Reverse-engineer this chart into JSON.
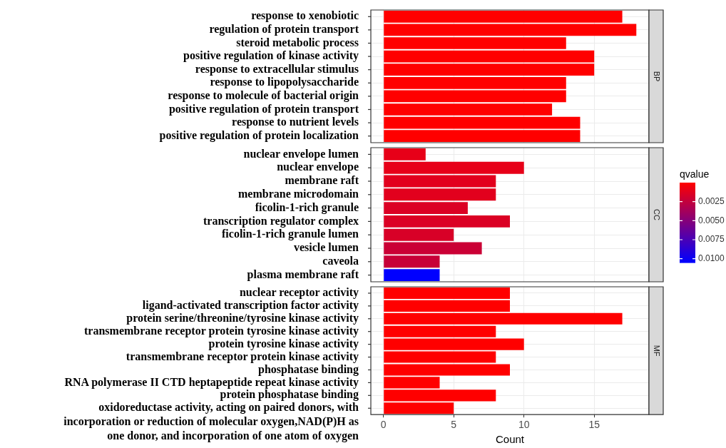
{
  "chart_data": [
    {
      "type": "bar",
      "orientation": "horizontal",
      "title": "BP",
      "categories": [
        "response to xenobiotic",
        "regulation of protein transport",
        "steroid metabolic process",
        "positive regulation of kinase activity",
        "response to extracellular stimulus",
        "response to lipopolysaccharide",
        "response to molecule of bacterial origin",
        "positive regulation of protein transport",
        "response to nutrient levels",
        "positive regulation of protein localization"
      ],
      "values": [
        17,
        18,
        13,
        15,
        15,
        13,
        13,
        12,
        14,
        14
      ],
      "colors": [
        "#ff0000",
        "#ff0000",
        "#ff0000",
        "#ff0000",
        "#ff0000",
        "#ff0000",
        "#ff0000",
        "#ff0000",
        "#ff0000",
        "#ff0000"
      ],
      "xlim": [
        -0.9,
        18.9
      ],
      "xticks": [
        0,
        5,
        10,
        15
      ],
      "grid": true,
      "tick_labels": "y"
    },
    {
      "type": "bar",
      "orientation": "horizontal",
      "title": "CC",
      "categories": [
        "nuclear envelope lumen",
        "nuclear envelope",
        "membrane raft",
        "membrane microdomain",
        "ficolin-1-rich granule",
        "transcription regulator complex",
        "ficolin-1-rich granule lumen",
        "vesicle lumen",
        "caveola",
        "plasma membrane raft"
      ],
      "values": [
        3,
        10,
        8,
        8,
        6,
        9,
        5,
        7,
        4,
        4
      ],
      "cvalues": [
        0.001,
        0.001,
        0.0012,
        0.0012,
        0.0015,
        0.0015,
        0.0016,
        0.0022,
        0.0023,
        0.0105
      ],
      "xlim": [
        -0.9,
        18.9
      ],
      "xticks": [
        0,
        5,
        10,
        15
      ],
      "grid": true,
      "tick_labels": "y",
      "clabel": "qvalue",
      "clim": [
        0,
        0.0105
      ],
      "cticks": [
        0.0025,
        {
          "value": 0.005,
          "label": "0.0050"
        },
        0.0075,
        {
          "value": 0.01,
          "label": "0.0100"
        }
      ]
    },
    {
      "type": "bar",
      "orientation": "horizontal",
      "title": "MF",
      "categories": [
        "nuclear receptor activity",
        "ligand-activated transcription factor activity",
        "protein serine/threonine/tyrosine kinase activity",
        "transmembrane receptor protein tyrosine kinase activity",
        "protein tyrosine kinase activity",
        "transmembrane receptor protein kinase activity",
        "phosphatase binding",
        "RNA polymerase II CTD heptapeptide repeat kinase activity",
        "protein phosphatase binding",
        "oxidoreductase activity, acting on paired donors, with incorporation or reduction of molecular oxygen,NAD(P)H as one donor, and incorporation of one atom of oxygen"
      ],
      "values": [
        9,
        9,
        17,
        8,
        10,
        8,
        9,
        4,
        8,
        5
      ],
      "colors": [
        "#ff0000",
        "#ff0000",
        "#ff0000",
        "#ff0000",
        "#ff0000",
        "#ff0000",
        "#ff0000",
        "#ff0000",
        "#ff0000",
        "#ff0000"
      ],
      "xlim": [
        -0.9,
        18.9
      ],
      "xticks": [
        0,
        5,
        10,
        15
      ],
      "grid": true,
      "xlabel": "Count"
    }
  ]
}
